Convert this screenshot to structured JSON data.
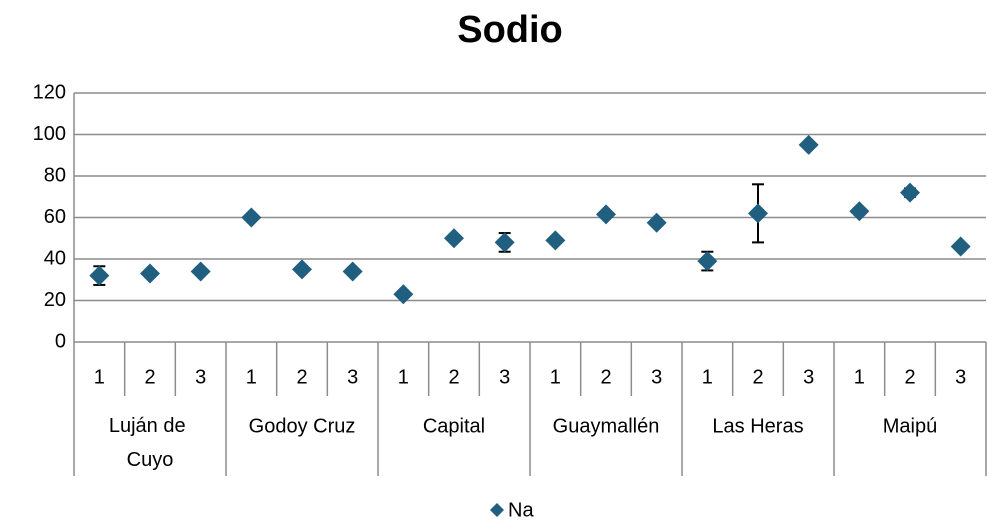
{
  "chart_data": {
    "type": "line",
    "title": "Sodio",
    "categories": [
      "1",
      "2",
      "3",
      "1",
      "2",
      "3",
      "1",
      "2",
      "3",
      "1",
      "2",
      "3",
      "1",
      "2",
      "3",
      "1",
      "2",
      "3"
    ],
    "groups": [
      "Luján de Cuyo",
      "Godoy Cruz",
      "Capital",
      "Guaymallén",
      "Las Heras",
      "Maipú"
    ],
    "series": [
      {
        "name": "Na",
        "color": "#215f80",
        "values": [
          32,
          33,
          34,
          60,
          35,
          34,
          23,
          50,
          48,
          49,
          61.5,
          57.5,
          39,
          62,
          95,
          63,
          72,
          46
        ],
        "errors": [
          4.5,
          0,
          0.5,
          0,
          0,
          0,
          1,
          1,
          4.5,
          0,
          0.5,
          0,
          4.5,
          14,
          0,
          1.5,
          2,
          0
        ]
      }
    ],
    "ylim": [
      0,
      120
    ],
    "yticks": [
      0,
      20,
      40,
      60,
      80,
      100,
      120
    ],
    "grid": true,
    "legend": "bottom"
  }
}
